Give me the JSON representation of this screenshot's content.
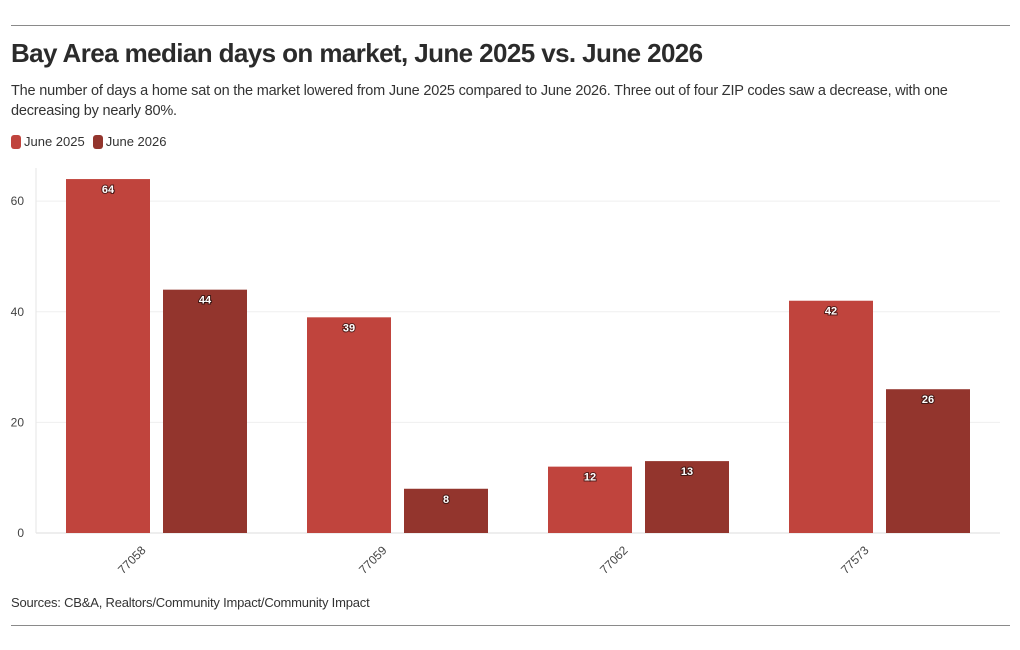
{
  "header": {
    "title": "Bay Area median days on market, June 2025 vs. June 2026",
    "subtitle": "The number of days a home sat on the market lowered from June 2025 compared to June 2026. Three out of four ZIP codes saw a decrease, with one decreasing by nearly 80%."
  },
  "legend": {
    "items": [
      {
        "label": "June 2025",
        "color": "#c0443d"
      },
      {
        "label": "June 2026",
        "color": "#93352d"
      }
    ]
  },
  "footer": {
    "source": "Sources: CB&A, Realtors/Community Impact/Community Impact"
  },
  "chart_data": {
    "type": "bar",
    "title": "Bay Area median days on market, June 2025 vs. June 2026",
    "xlabel": "",
    "ylabel": "",
    "categories": [
      "77058",
      "77059",
      "77062",
      "77573"
    ],
    "series": [
      {
        "name": "June 2025",
        "color": "#c0443d",
        "values": [
          64,
          39,
          12,
          42
        ]
      },
      {
        "name": "June 2026",
        "color": "#93352d",
        "values": [
          44,
          8,
          13,
          26
        ]
      }
    ],
    "ylim": [
      0,
      66
    ],
    "yticks": [
      0,
      20,
      40,
      60
    ],
    "grid": true,
    "legend_position": "top-left"
  }
}
